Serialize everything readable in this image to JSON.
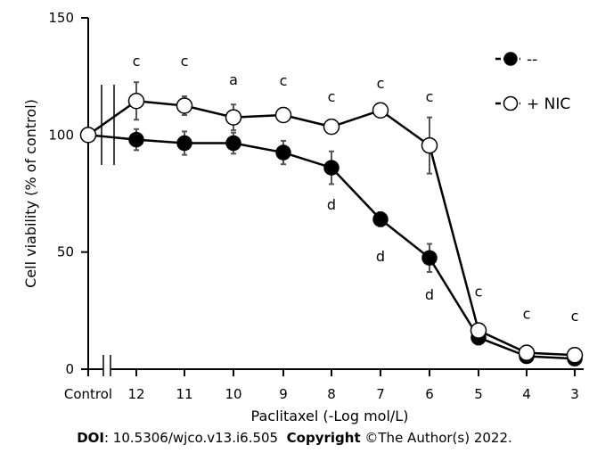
{
  "chart_data": {
    "type": "line",
    "xlabel": "Paclitaxel (-Log mol/L)",
    "ylabel": "Cell viability (% of control)",
    "ylim": [
      0,
      150
    ],
    "yticks": [
      0,
      50,
      100,
      150
    ],
    "categories": [
      "Control",
      "12",
      "11",
      "10",
      "9",
      "8",
      "7",
      "6",
      "5",
      "4",
      "3"
    ],
    "axis_break": true,
    "legend_position": "top-right",
    "series": [
      {
        "name": "--",
        "marker": "filled-circle",
        "values": [
          100,
          98,
          96.5,
          96.5,
          92.5,
          86,
          64,
          47.5,
          13.5,
          5.5,
          4.5
        ],
        "errors": [
          0,
          4.5,
          5,
          4.5,
          5,
          7,
          3,
          6,
          3,
          2,
          2
        ],
        "annotations": [
          "",
          "",
          "",
          "",
          "",
          "d",
          "d",
          "d",
          "",
          "",
          ""
        ]
      },
      {
        "name": "+ NIC",
        "marker": "open-circle",
        "values": [
          100,
          114.5,
          112.5,
          107.5,
          108.5,
          103.5,
          110.5,
          95.5,
          16.5,
          7,
          6
        ],
        "errors": [
          0,
          8,
          4,
          5.5,
          3,
          2,
          3,
          12,
          2,
          2,
          2
        ],
        "annotations": [
          "",
          "c",
          "c",
          "a",
          "c",
          "c",
          "c",
          "c",
          "c",
          "c",
          "c"
        ]
      }
    ]
  },
  "footer": {
    "doi_label": "DOI",
    "doi_value": ": 10.5306/wjco.v13.i6.505",
    "copyright_label": "Copyright",
    "copyright_value": " ©The Author(s) 2022."
  }
}
